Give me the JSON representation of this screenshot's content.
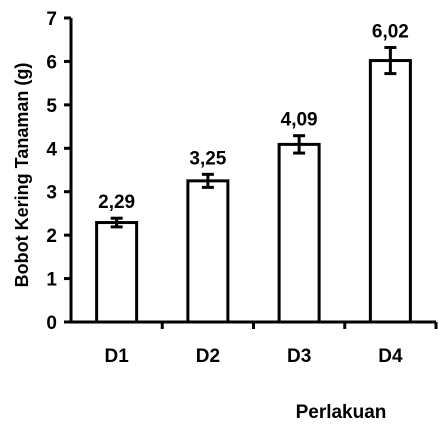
{
  "chart_data": {
    "type": "bar",
    "categories": [
      "D1",
      "D2",
      "D3",
      "D4"
    ],
    "values": [
      2.29,
      3.25,
      4.09,
      6.02
    ],
    "value_labels": [
      "2,29",
      "3,25",
      "4,09",
      "6,02"
    ],
    "error": [
      0.1,
      0.15,
      0.2,
      0.3
    ],
    "title": "",
    "xlabel": "Perlakuan",
    "ylabel": "Bobot Kering Tanaman (g)",
    "ylim": [
      0,
      7
    ],
    "yticks": [
      0,
      1,
      2,
      3,
      4,
      5,
      6,
      7
    ],
    "grid": false,
    "bar_color": "#ffffff",
    "bar_edge_color": "#000000"
  }
}
